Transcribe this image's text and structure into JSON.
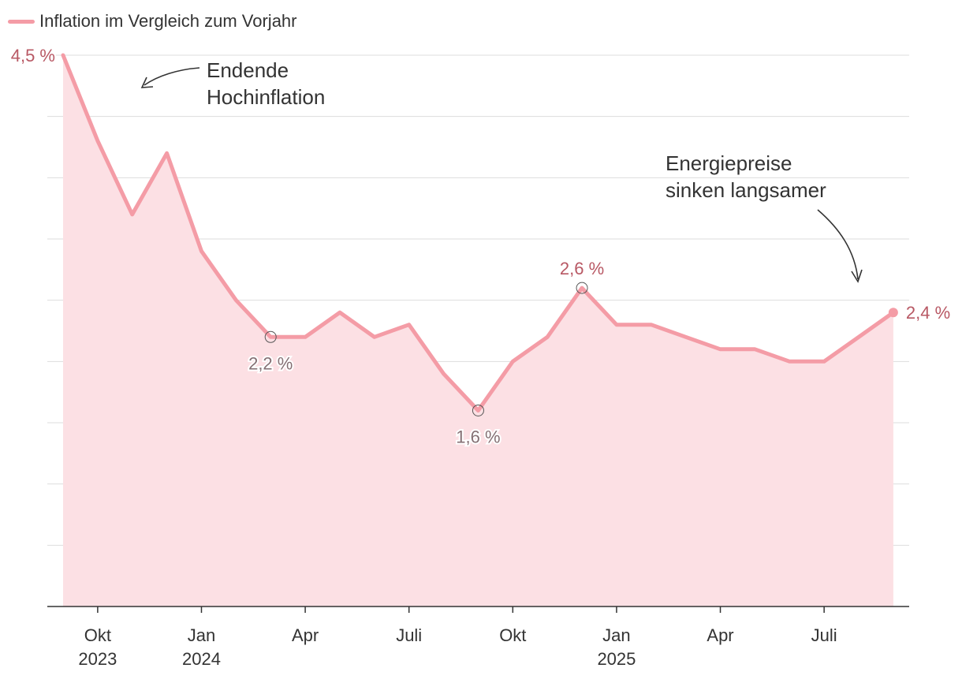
{
  "chart_data": {
    "type": "area",
    "legend": "Inflation im Vergleich zum Vorjahr",
    "series": [
      {
        "name": "Inflation im Vergleich zum Vorjahr",
        "values": [
          4.5,
          3.8,
          3.2,
          3.7,
          2.9,
          2.5,
          2.2,
          2.2,
          2.4,
          2.2,
          2.3,
          1.9,
          1.6,
          2.0,
          2.2,
          2.6,
          2.3,
          2.3,
          2.2,
          2.1,
          2.1,
          2.0,
          2.0,
          2.2,
          2.4
        ]
      }
    ],
    "ylim": [
      0,
      4.5
    ],
    "ygrid": [
      0.5,
      1.0,
      1.5,
      2.0,
      2.5,
      3.0,
      3.5,
      4.0,
      4.5
    ],
    "x_ticks": [
      {
        "index": 1,
        "line1": "Okt",
        "line2": "2023"
      },
      {
        "index": 4,
        "line1": "Jan",
        "line2": "2024"
      },
      {
        "index": 7,
        "line1": "Apr",
        "line2": ""
      },
      {
        "index": 10,
        "line1": "Juli",
        "line2": ""
      },
      {
        "index": 13,
        "line1": "Okt",
        "line2": ""
      },
      {
        "index": 16,
        "line1": "Jan",
        "line2": "2025"
      },
      {
        "index": 19,
        "line1": "Apr",
        "line2": ""
      },
      {
        "index": 22,
        "line1": "Juli",
        "line2": ""
      }
    ],
    "value_labels": [
      {
        "index": 0,
        "text": "4,5 %",
        "position": "left"
      },
      {
        "index": 6,
        "text": "2,2 %",
        "position": "below",
        "marker": "circle"
      },
      {
        "index": 12,
        "text": "1,6 %",
        "position": "below",
        "marker": "circle"
      },
      {
        "index": 15,
        "text": "2,6 %",
        "position": "above",
        "marker": "circle"
      },
      {
        "index": 24,
        "text": "2,4 %",
        "position": "right",
        "marker": "dot"
      }
    ],
    "colors": {
      "line": "#f49ca6",
      "area": "#fce0e4",
      "label": "#b85864",
      "label_muted": "#857074",
      "grid": "#dddddd",
      "axis": "#333333"
    }
  },
  "annotations": {
    "hochinflation": {
      "line1": "Endende",
      "line2": "Hochinflation"
    },
    "energie": {
      "line1": "Energiepreise",
      "line2": "sinken langsamer"
    }
  }
}
